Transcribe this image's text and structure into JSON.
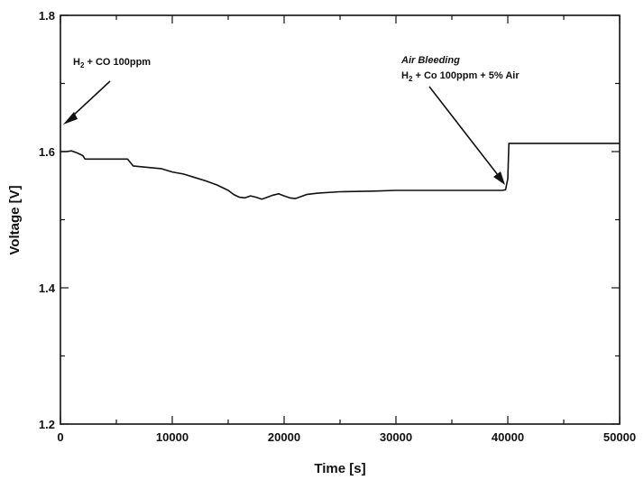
{
  "chart_data": {
    "type": "line",
    "xlabel": "Time [s]",
    "ylabel": "Voltage [V]",
    "xlim": [
      0,
      50000
    ],
    "ylim": [
      1.2,
      1.8
    ],
    "x_ticks": [
      0,
      10000,
      20000,
      30000,
      40000,
      50000
    ],
    "y_ticks": [
      1.2,
      1.4,
      1.6,
      1.8
    ],
    "grid": false,
    "series": [
      {
        "x": [
          0,
          500,
          1000,
          1500,
          2000,
          2200,
          5000,
          6000,
          6500,
          7000,
          9000,
          10000,
          11000,
          12000,
          13000,
          14000,
          15000,
          15500,
          16000,
          16500,
          17000,
          17500,
          18000,
          18500,
          19000,
          19500,
          20000,
          20500,
          21000,
          22000,
          23000,
          25000,
          28000,
          30000,
          35000,
          39000,
          39500,
          39800,
          40000,
          40100,
          50000
        ],
        "y": [
          1.6,
          1.6,
          1.601,
          1.598,
          1.594,
          1.589,
          1.589,
          1.589,
          1.579,
          1.578,
          1.575,
          1.57,
          1.567,
          1.562,
          1.557,
          1.551,
          1.543,
          1.537,
          1.533,
          1.532,
          1.535,
          1.533,
          1.53,
          1.533,
          1.536,
          1.538,
          1.535,
          1.532,
          1.531,
          1.537,
          1.539,
          1.541,
          1.542,
          1.543,
          1.543,
          1.543,
          1.543,
          1.544,
          1.56,
          1.612,
          1.612
        ]
      }
    ],
    "annotations": [
      {
        "lines": [
          "H",
          "2",
          " + CO 100ppm"
        ],
        "arrow_to": [
          0,
          1.6
        ]
      },
      {
        "title": "Air Bleeding",
        "lines": [
          "H",
          "2",
          " + Co 100ppm + 5% Air"
        ],
        "arrow_to": [
          39500,
          1.542
        ]
      }
    ]
  }
}
